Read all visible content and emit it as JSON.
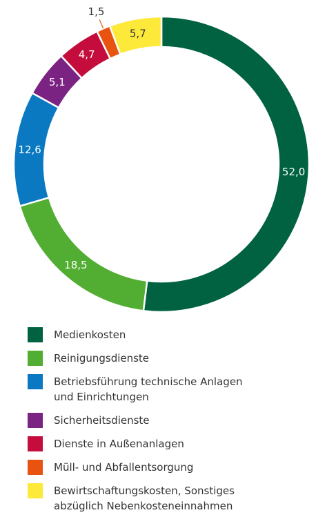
{
  "chart_data": {
    "type": "donut",
    "categories": [
      "Medienkosten",
      "Reinigungsdienste",
      "Betriebsführung technische Anlagen und Einrichtungen",
      "Sicherheitsdienste",
      "Dienste in Außenanlagen",
      "Müll- und Abfallentsorgung",
      "Bewirtschaftungskosten, Sonstiges abzüglich Nebenkosteneinnahmen"
    ],
    "values": [
      52.0,
      18.5,
      12.6,
      5.1,
      4.7,
      1.5,
      5.7
    ],
    "value_labels": [
      "52,0",
      "18,5",
      "12,6",
      "5,1",
      "4,7",
      "1,5",
      "5,7"
    ],
    "colors": [
      "#006241",
      "#52ae32",
      "#0a79c1",
      "#7b2382",
      "#c40d3c",
      "#e8530f",
      "#fde93a"
    ]
  }
}
